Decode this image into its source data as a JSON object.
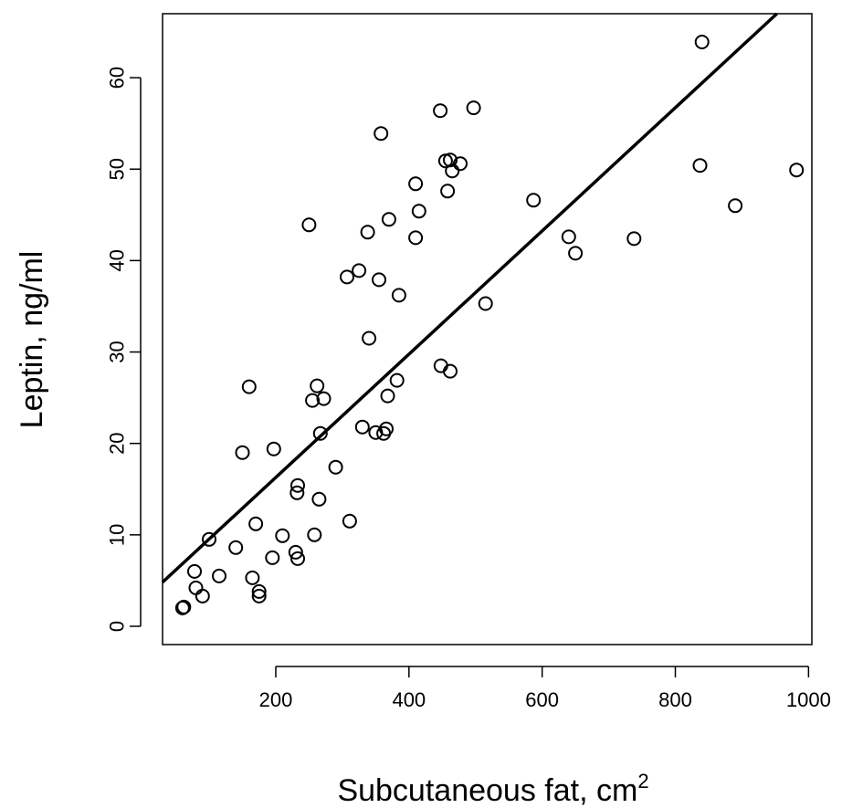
{
  "chart_data": {
    "type": "scatter",
    "title": "",
    "xlabel": "Subcutaneous fat, cm",
    "xlabel_superscript": "2",
    "ylabel": "Leptin, ng/ml",
    "xlim": [
      30,
      1005
    ],
    "ylim": [
      -2,
      67
    ],
    "xticks": [
      200,
      400,
      600,
      800,
      1000
    ],
    "yticks": [
      0,
      10,
      20,
      30,
      40,
      50,
      60
    ],
    "grid": false,
    "legend": "none",
    "marker": "open-circle",
    "colors": {
      "points": "#000000",
      "line": "#000000",
      "axes": "#000000"
    },
    "fit_line": {
      "intercept": 2.8,
      "slope": 0.0674
    },
    "points": [
      [
        60,
        2.0
      ],
      [
        62,
        2.1
      ],
      [
        78,
        6.0
      ],
      [
        80,
        4.2
      ],
      [
        90,
        3.3
      ],
      [
        100,
        9.5
      ],
      [
        115,
        5.5
      ],
      [
        140,
        8.6
      ],
      [
        150,
        19.0
      ],
      [
        160,
        26.2
      ],
      [
        165,
        5.3
      ],
      [
        170,
        11.2
      ],
      [
        175,
        3.8
      ],
      [
        175,
        3.3
      ],
      [
        195,
        7.5
      ],
      [
        197,
        19.4
      ],
      [
        210,
        9.9
      ],
      [
        230,
        8.1
      ],
      [
        232,
        14.6
      ],
      [
        233,
        15.4
      ],
      [
        233,
        7.4
      ],
      [
        250,
        43.9
      ],
      [
        255,
        24.7
      ],
      [
        258,
        10.0
      ],
      [
        262,
        26.3
      ],
      [
        265,
        13.9
      ],
      [
        267,
        21.1
      ],
      [
        272,
        24.9
      ],
      [
        290,
        17.4
      ],
      [
        307,
        38.2
      ],
      [
        311,
        11.5
      ],
      [
        325,
        38.9
      ],
      [
        330,
        21.8
      ],
      [
        338,
        43.1
      ],
      [
        340,
        31.5
      ],
      [
        350,
        21.2
      ],
      [
        355,
        37.9
      ],
      [
        358,
        53.9
      ],
      [
        362,
        21.1
      ],
      [
        366,
        21.6
      ],
      [
        368,
        25.2
      ],
      [
        370,
        44.5
      ],
      [
        382,
        26.9
      ],
      [
        385,
        36.2
      ],
      [
        410,
        48.4
      ],
      [
        410,
        42.5
      ],
      [
        415,
        45.4
      ],
      [
        447,
        56.4
      ],
      [
        448,
        28.5
      ],
      [
        455,
        50.9
      ],
      [
        458,
        47.6
      ],
      [
        462,
        51.0
      ],
      [
        462,
        27.9
      ],
      [
        465,
        49.8
      ],
      [
        477,
        50.6
      ],
      [
        497,
        56.7
      ],
      [
        515,
        35.3
      ],
      [
        587,
        46.6
      ],
      [
        640,
        42.6
      ],
      [
        650,
        40.8
      ],
      [
        738,
        42.4
      ],
      [
        837,
        50.4
      ],
      [
        840,
        63.9
      ],
      [
        890,
        46.0
      ],
      [
        982,
        49.9
      ]
    ]
  }
}
